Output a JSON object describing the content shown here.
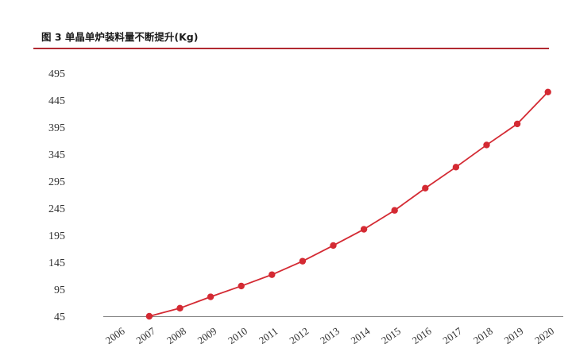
{
  "figure": {
    "title": "图 3 单晶单炉装料量不断提升(Kg)"
  },
  "colors": {
    "accent": "#b22a32",
    "series_line": "#d42a33",
    "axis": "#7f7f7f",
    "text": "#333333"
  },
  "chart_data": {
    "type": "line",
    "title": "",
    "xlabel": "",
    "ylabel": "",
    "categories": [
      "2006",
      "2007",
      "2008",
      "2009",
      "2010",
      "2011",
      "2012",
      "2013",
      "2014",
      "2015",
      "2016",
      "2017",
      "2018",
      "2019",
      "2020"
    ],
    "y_ticks": [
      45,
      95,
      145,
      195,
      245,
      295,
      345,
      395,
      445,
      495
    ],
    "ylim": [
      45,
      495
    ],
    "grid": false,
    "legend": "none",
    "series": [
      {
        "points": [
          {
            "x": "2007",
            "y": 45
          },
          {
            "x": "2008",
            "y": 60
          },
          {
            "x": "2009",
            "y": 81
          },
          {
            "x": "2010",
            "y": 101
          },
          {
            "x": "2011",
            "y": 122
          },
          {
            "x": "2012",
            "y": 147
          },
          {
            "x": "2013",
            "y": 176
          },
          {
            "x": "2014",
            "y": 206
          },
          {
            "x": "2015",
            "y": 241
          },
          {
            "x": "2016",
            "y": 282
          },
          {
            "x": "2017",
            "y": 321
          },
          {
            "x": "2018",
            "y": 362
          },
          {
            "x": "2019",
            "y": 401
          },
          {
            "x": "2020",
            "y": 460
          }
        ]
      }
    ]
  }
}
